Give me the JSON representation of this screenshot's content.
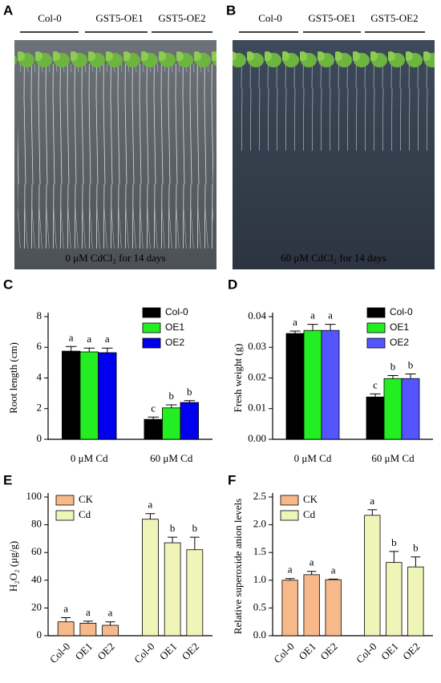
{
  "figure": {
    "panel_a": "A",
    "panel_b": "B",
    "genotypes": [
      "Col-0",
      "GST5-OE1",
      "GST5-OE2"
    ],
    "caption_a": "0 μM CdCl₂ for 14 days",
    "caption_b": "60 μM CdCl₂ for 14 days"
  },
  "chart_data": [
    {
      "type": "bar",
      "panel": "C",
      "ylabel": "Root length (cm)",
      "categories": [
        "0 μM Cd",
        "60 μM Cd"
      ],
      "legend": "upper right",
      "series": [
        {
          "name": "Col-0",
          "color": "#000000",
          "values": [
            5.75,
            1.3
          ],
          "errors": [
            0.3,
            0.15
          ],
          "letters": [
            "a",
            "c"
          ]
        },
        {
          "name": "OE1",
          "color": "#22ee22",
          "values": [
            5.7,
            2.05
          ],
          "errors": [
            0.25,
            0.2
          ],
          "letters": [
            "a",
            "b"
          ]
        },
        {
          "name": "OE2",
          "color": "#0000ee",
          "values": [
            5.65,
            2.4
          ],
          "errors": [
            0.3,
            0.12
          ],
          "letters": [
            "a",
            "b"
          ]
        }
      ],
      "ylim": [
        0,
        8
      ],
      "yticks": [
        0,
        2,
        4,
        6,
        8
      ]
    },
    {
      "type": "bar",
      "panel": "D",
      "ylabel": "Fresh weight (g)",
      "categories": [
        "0 μM Cd",
        "60 μM Cd"
      ],
      "legend": "upper right",
      "series": [
        {
          "name": "Col-0",
          "color": "#000000",
          "values": [
            0.0345,
            0.0138
          ],
          "errors": [
            0.0008,
            0.001
          ],
          "letters": [
            "a",
            "c"
          ]
        },
        {
          "name": "OE1",
          "color": "#22ee22",
          "values": [
            0.0355,
            0.0198
          ],
          "errors": [
            0.002,
            0.001
          ],
          "letters": [
            "a",
            "b"
          ]
        },
        {
          "name": "OE2",
          "color": "#5555ff",
          "values": [
            0.0355,
            0.0198
          ],
          "errors": [
            0.002,
            0.0015
          ],
          "letters": [
            "a",
            "b"
          ]
        }
      ],
      "ylim": [
        0,
        0.04
      ],
      "yticks": [
        {
          "value": 0,
          "label": "0.00"
        },
        0.01,
        0.02,
        0.03,
        0.04
      ]
    },
    {
      "type": "bar",
      "panel": "E",
      "ylabel": "H₂O₂ (μg/g)",
      "categories": [
        "Col-0",
        "OE1",
        "OE2",
        "Col-0",
        "OE1",
        "OE2"
      ],
      "legend": "upper left",
      "series": [
        {
          "name": "CK",
          "color": "#f8b98a",
          "values": [
            10,
            9,
            7.5,
            null,
            null,
            null
          ],
          "errors": [
            3,
            1.5,
            2.5,
            null,
            null,
            null
          ],
          "letters": [
            "a",
            "a",
            "a",
            null,
            null,
            null
          ]
        },
        {
          "name": "Cd",
          "color": "#eff5b6",
          "values": [
            null,
            null,
            null,
            84,
            67,
            62
          ],
          "errors": [
            null,
            null,
            null,
            4,
            4,
            9
          ],
          "letters": [
            null,
            null,
            null,
            "a",
            "b",
            "b"
          ]
        }
      ],
      "ylim": [
        0,
        100
      ],
      "yticks": [
        0,
        20,
        40,
        60,
        80,
        100
      ]
    },
    {
      "type": "bar",
      "panel": "F",
      "ylabel": "Relative superoxide anion levels",
      "categories": [
        "Col-0",
        "OE1",
        "OE2",
        "Col-0",
        "OE1",
        "OE2"
      ],
      "legend": "upper left",
      "series": [
        {
          "name": "CK",
          "color": "#f8b98a",
          "values": [
            1.0,
            1.1,
            1.01,
            null,
            null,
            null
          ],
          "errors": [
            0.03,
            0.06,
            0.01,
            null,
            null,
            null
          ],
          "letters": [
            "a",
            "a",
            "a",
            null,
            null,
            null
          ]
        },
        {
          "name": "Cd",
          "color": "#eff5b6",
          "values": [
            null,
            null,
            null,
            2.17,
            1.32,
            1.24
          ],
          "errors": [
            null,
            null,
            null,
            0.1,
            0.2,
            0.18
          ],
          "letters": [
            null,
            null,
            null,
            "a",
            "b",
            "b"
          ]
        }
      ],
      "ylim": [
        0,
        2.5
      ],
      "yticks": [
        {
          "value": 0,
          "label": "0.0"
        },
        0.5,
        {
          "value": 1,
          "label": "1.0"
        },
        1.5,
        {
          "value": 2,
          "label": "2.0"
        },
        2.5
      ]
    }
  ]
}
